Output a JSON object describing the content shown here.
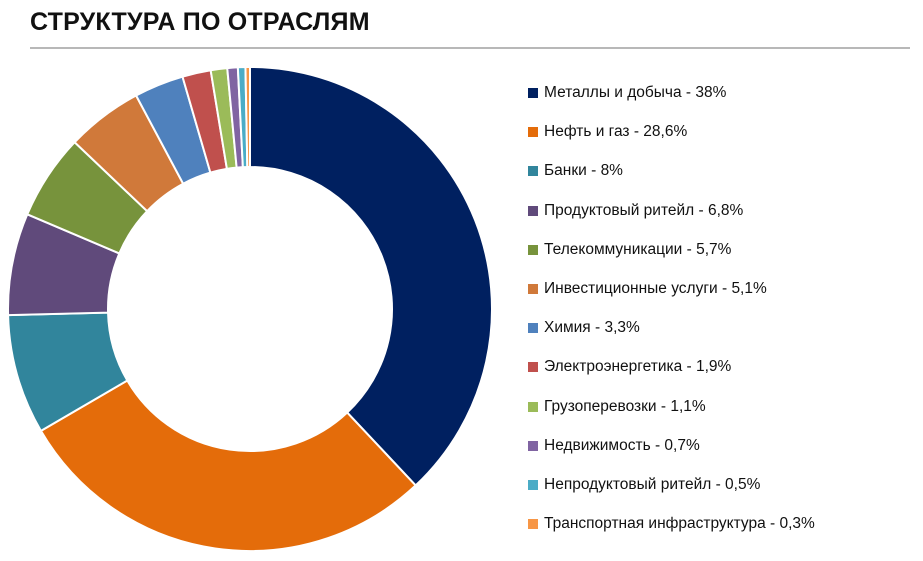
{
  "header": {
    "title": "СТРУКТУРА ПО ОТРАСЛЯМ"
  },
  "chart_data": {
    "type": "pie",
    "variant": "donut",
    "title": "СТРУКТУРА ПО ОТРАСЛЯМ",
    "legend_position": "right",
    "categories": [
      "Металлы и добыча",
      "Нефть и газ",
      "Банки",
      "Продуктовый ритейл",
      "Телекоммуникации",
      "Инвестиционные услуги",
      "Химия",
      "Электроэнергетика",
      "Грузоперевозки",
      "Недвижимость",
      "Непродуктовый ритейл",
      "Транспортная инфраструктура"
    ],
    "values": [
      38,
      28.6,
      8,
      6.8,
      5.7,
      5.1,
      3.3,
      1.9,
      1.1,
      0.7,
      0.5,
      0.3
    ],
    "colors": [
      "#002060",
      "#E46C0A",
      "#31859C",
      "#604A7B",
      "#77933C",
      "#D0793A",
      "#4F81BD",
      "#C0504D",
      "#9BBB59",
      "#8064A2",
      "#4BACC6",
      "#F79646"
    ],
    "legend_labels": [
      "Металлы и добыча - 38%",
      "Нефть и газ - 28,6%",
      "Банки - 8%",
      "Продуктовый ритейл - 6,8%",
      "Телекоммуникации - 5,7%",
      "Инвестиционные услуги - 5,1%",
      "Химия - 3,3%",
      "Электроэнергетика - 1,9%",
      "Грузоперевозки - 1,1%",
      "Недвижимость - 0,7%",
      "Непродуктовый ритейл - 0,5%",
      "Транспортная инфраструктура - 0,3%"
    ]
  }
}
